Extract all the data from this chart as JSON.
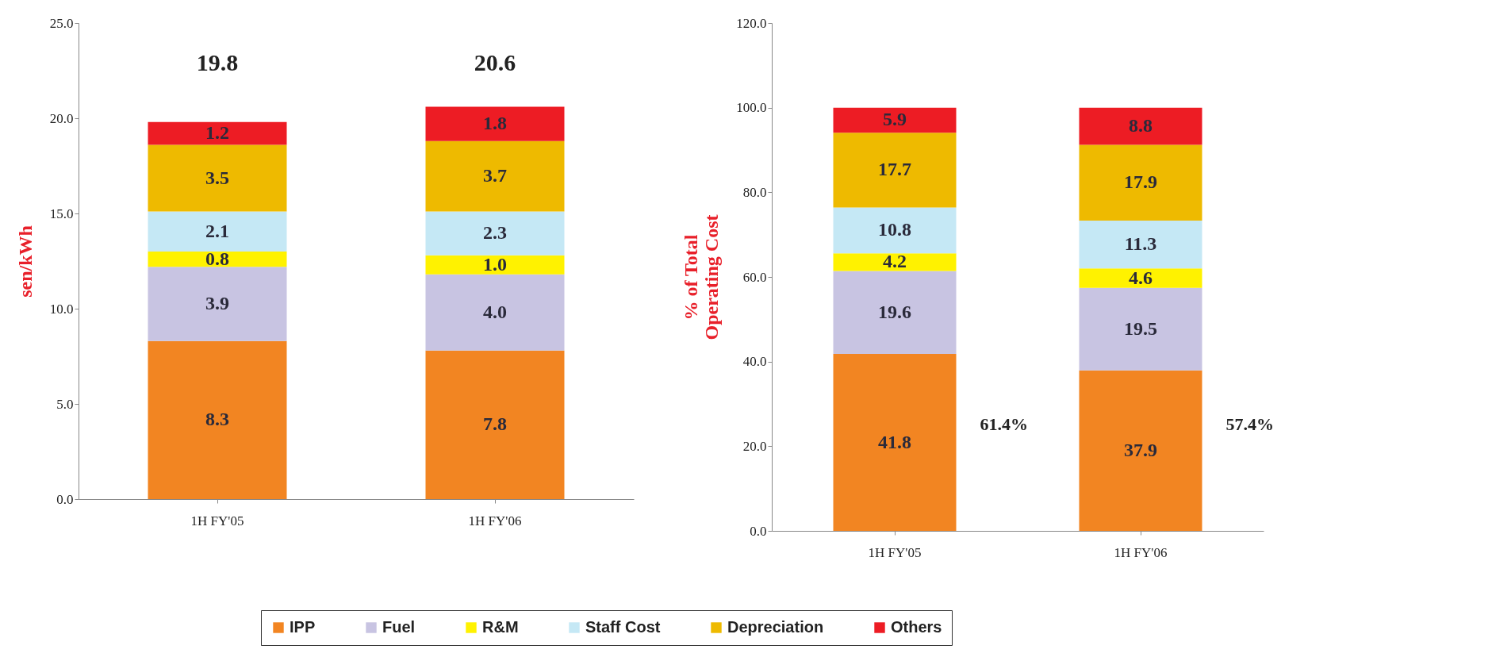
{
  "chart_data": [
    {
      "type": "bar",
      "stacked": true,
      "categories": [
        "1H FY'05",
        "1H FY'06"
      ],
      "ylabel": "sen/kWh",
      "ylim": [
        0,
        25
      ],
      "yticks": [
        {
          "value": 0,
          "label": "0.0"
        },
        {
          "value": 5,
          "label": "5.0"
        },
        {
          "value": 10,
          "label": "10.0"
        },
        {
          "value": 15,
          "label": "15.0"
        },
        {
          "value": 20,
          "label": "20.0"
        },
        {
          "value": 25,
          "label": "25.0"
        }
      ],
      "totals": [
        "19.8",
        "20.6"
      ],
      "legend": "bottom",
      "series": [
        {
          "name": "IPP",
          "color": "#f28522",
          "values": [
            8.3,
            7.8
          ],
          "value_labels": [
            "8.3",
            "7.8"
          ]
        },
        {
          "name": "Fuel",
          "color": "#c8c4e2",
          "values": [
            3.9,
            4.0
          ],
          "value_labels": [
            "3.9",
            "4.0"
          ]
        },
        {
          "name": "R&M",
          "color": "#fff200",
          "values": [
            0.8,
            1.0
          ],
          "value_labels": [
            "0.8",
            "1.0"
          ]
        },
        {
          "name": "Staff Cost",
          "color": "#c5e8f5",
          "values": [
            2.1,
            2.3
          ],
          "value_labels": [
            "2.1",
            "2.3"
          ]
        },
        {
          "name": "Depreciation",
          "color": "#eeba00",
          "values": [
            3.5,
            3.7
          ],
          "value_labels": [
            "3.5",
            "3.7"
          ]
        },
        {
          "name": "Others",
          "color": "#ed1c24",
          "values": [
            1.2,
            1.8
          ],
          "value_labels": [
            "1.2",
            "1.8"
          ]
        }
      ]
    },
    {
      "type": "bar",
      "stacked": true,
      "categories": [
        "1H FY'05",
        "1H FY'06"
      ],
      "ylabel": "% of Total Operating Cost",
      "ylim": [
        0,
        120
      ],
      "yticks": [
        {
          "value": 0,
          "label": "0.0"
        },
        {
          "value": 20,
          "label": "20.0"
        },
        {
          "value": 40,
          "label": "40.0"
        },
        {
          "value": 60,
          "label": "60.0"
        },
        {
          "value": 80,
          "label": "80.0"
        },
        {
          "value": 100,
          "label": "100.0"
        },
        {
          "value": 120,
          "label": "120.0"
        }
      ],
      "legend": "bottom",
      "annotations": [
        "61.4%",
        "57.4%"
      ],
      "series": [
        {
          "name": "IPP",
          "color": "#f28522",
          "values": [
            41.8,
            37.9
          ],
          "value_labels": [
            "41.8",
            "37.9"
          ]
        },
        {
          "name": "Fuel",
          "color": "#c8c4e2",
          "values": [
            19.6,
            19.5
          ],
          "value_labels": [
            "19.6",
            "19.5"
          ]
        },
        {
          "name": "R&M",
          "color": "#fff200",
          "values": [
            4.2,
            4.6
          ],
          "value_labels": [
            "4.2",
            "4.6"
          ]
        },
        {
          "name": "Staff Cost",
          "color": "#c5e8f5",
          "values": [
            10.8,
            11.3
          ],
          "value_labels": [
            "10.8",
            "11.3"
          ]
        },
        {
          "name": "Depreciation",
          "color": "#eeba00",
          "values": [
            17.7,
            17.9
          ],
          "value_labels": [
            "17.7",
            "17.9"
          ]
        },
        {
          "name": "Others",
          "color": "#ed1c24",
          "values": [
            5.9,
            8.8
          ],
          "value_labels": [
            "5.9",
            "8.8"
          ]
        }
      ]
    }
  ]
}
